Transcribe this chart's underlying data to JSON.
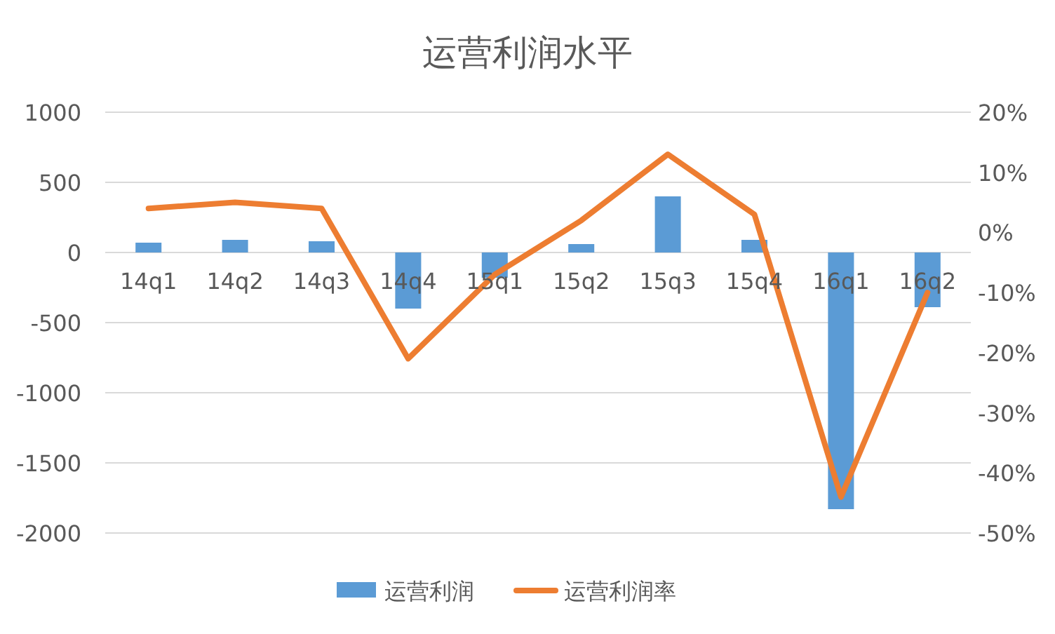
{
  "chart_data": {
    "type": "bar",
    "title": "运营利润水平",
    "categories": [
      "14q1",
      "14q2",
      "14q3",
      "14q4",
      "15q1",
      "15q2",
      "15q3",
      "15q4",
      "16q1",
      "16q2"
    ],
    "series": [
      {
        "name": "运营利润",
        "color": "#5b9bd5",
        "values": [
          70,
          90,
          80,
          -400,
          -180,
          60,
          400,
          90,
          -1830,
          -390
        ]
      },
      {
        "name": "运营利润率",
        "type": "line",
        "axis": "y2",
        "color": "#ed7d31",
        "values": [
          4,
          5,
          4,
          -21,
          -7,
          2,
          13,
          3,
          -44,
          -10
        ]
      }
    ],
    "ylim": [
      -2000,
      1000
    ],
    "yticks": [
      -2000,
      -1500,
      -1000,
      -500,
      0,
      500,
      1000
    ],
    "y2lim": [
      -50,
      20
    ],
    "y2ticks": [
      {
        "value": -50,
        "label": "-50%"
      },
      {
        "value": -40,
        "label": "-40%"
      },
      {
        "value": -30,
        "label": "-30%"
      },
      {
        "value": -20,
        "label": "-20%"
      },
      {
        "value": -10,
        "label": "-10%"
      },
      {
        "value": 0,
        "label": "0%"
      },
      {
        "value": 10,
        "label": "10%"
      },
      {
        "value": 20,
        "label": "20%"
      }
    ],
    "grid": "y",
    "legend": "bottom"
  }
}
